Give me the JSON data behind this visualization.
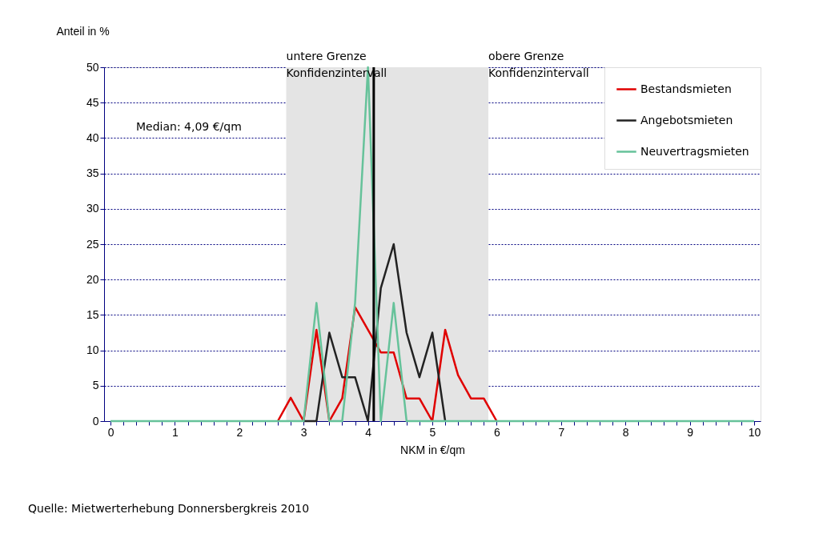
{
  "chart_data": {
    "type": "line",
    "xlabel": "NKM in €/qm",
    "ylabel": "Anteil in %",
    "x": [
      0,
      0.2,
      0.4,
      0.6,
      0.8,
      1,
      1.2,
      1.4,
      1.6,
      1.8,
      2,
      2.2,
      2.4,
      2.6,
      2.8,
      3,
      3.2,
      3.4,
      3.6,
      3.8,
      4,
      4.2,
      4.4,
      4.6,
      4.8,
      5,
      5.2,
      5.4,
      5.6,
      5.8,
      6,
      6.2,
      6.4,
      6.6,
      6.8,
      7,
      7.2,
      7.4,
      7.6,
      7.8,
      8,
      8.2,
      8.4,
      8.6,
      8.8,
      9,
      9.2,
      9.4,
      9.6,
      9.8,
      10
    ],
    "series": [
      {
        "name": "Bestandsmieten",
        "color": "#e00000",
        "values": [
          null,
          null,
          null,
          null,
          null,
          null,
          null,
          null,
          null,
          null,
          null,
          null,
          null,
          0,
          3.3,
          0,
          12.9,
          0,
          3.2,
          16.1,
          12.9,
          9.7,
          9.7,
          3.2,
          3.2,
          0,
          12.9,
          6.5,
          3.2,
          3.2,
          0,
          null,
          null,
          null,
          null,
          null,
          null,
          null,
          null,
          null,
          null,
          null,
          null,
          null,
          null,
          null,
          null,
          null,
          null,
          null,
          null
        ]
      },
      {
        "name": "Angebotsmieten",
        "color": "#222222",
        "values": [
          null,
          null,
          null,
          null,
          null,
          null,
          null,
          null,
          null,
          null,
          null,
          null,
          null,
          null,
          null,
          0,
          0,
          12.5,
          6.2,
          6.2,
          0,
          18.8,
          25,
          12.5,
          6.2,
          12.5,
          0,
          null,
          null,
          null,
          null,
          null,
          null,
          null,
          null,
          null,
          null,
          null,
          null,
          null,
          null,
          null,
          null,
          null,
          null,
          null,
          null,
          null,
          null,
          null,
          null
        ]
      },
      {
        "name": "Neuvertragsmieten",
        "color": "#66c29a",
        "values": [
          0,
          0,
          0,
          0,
          0,
          0,
          0,
          0,
          0,
          0,
          0,
          0,
          0,
          0,
          0,
          0,
          16.7,
          0,
          0,
          16.7,
          50,
          0,
          16.7,
          0,
          0,
          0,
          0,
          0,
          0,
          0,
          0,
          0,
          0,
          0,
          0,
          0,
          0,
          0,
          0,
          0,
          0,
          0,
          0,
          0,
          0,
          0,
          0,
          0,
          0,
          0,
          0
        ]
      }
    ],
    "xlim": [
      -0.1,
      10.1
    ],
    "ylim": [
      0,
      50
    ],
    "xticks": [
      0,
      {
        "value": 0.2,
        "label": null
      },
      {
        "value": 0.4,
        "label": null
      },
      {
        "value": 0.6,
        "label": null
      },
      {
        "value": 0.8,
        "label": null
      },
      1,
      {
        "value": 1.2,
        "label": null
      },
      {
        "value": 1.4,
        "label": null
      },
      {
        "value": 1.6,
        "label": null
      },
      {
        "value": 1.8,
        "label": null
      },
      2,
      {
        "value": 2.2,
        "label": null
      },
      {
        "value": 2.4,
        "label": null
      },
      {
        "value": 2.6,
        "label": null
      },
      {
        "value": 2.8,
        "label": null
      },
      3,
      {
        "value": 3.2,
        "label": null
      },
      {
        "value": 3.4,
        "label": null
      },
      {
        "value": 3.6,
        "label": null
      },
      {
        "value": 3.8,
        "label": null
      },
      4,
      {
        "value": 4.2,
        "label": null
      },
      {
        "value": 4.4,
        "label": null
      },
      {
        "value": 4.6,
        "label": null
      },
      {
        "value": 4.8,
        "label": null
      },
      5,
      {
        "value": 5.2,
        "label": null
      },
      {
        "value": 5.4,
        "label": null
      },
      {
        "value": 5.6,
        "label": null
      },
      {
        "value": 5.8,
        "label": null
      },
      6,
      {
        "value": 6.2,
        "label": null
      },
      {
        "value": 6.4,
        "label": null
      },
      {
        "value": 6.6,
        "label": null
      },
      {
        "value": 6.8,
        "label": null
      },
      7,
      {
        "value": 7.2,
        "label": null
      },
      {
        "value": 7.4,
        "label": null
      },
      {
        "value": 7.6,
        "label": null
      },
      {
        "value": 7.8,
        "label": null
      },
      8,
      {
        "value": 8.2,
        "label": null
      },
      {
        "value": 8.4,
        "label": null
      },
      {
        "value": 8.6,
        "label": null
      },
      {
        "value": 8.8,
        "label": null
      },
      9,
      {
        "value": 9.2,
        "label": null
      },
      {
        "value": 9.4,
        "label": null
      },
      {
        "value": 9.6,
        "label": null
      },
      {
        "value": 9.8,
        "label": null
      },
      10
    ],
    "yticks": [
      0,
      5,
      10,
      15,
      20,
      25,
      30,
      35,
      40,
      45,
      50
    ],
    "grid": "y",
    "legend": "top right",
    "bands": [
      {
        "axis": "x",
        "from": 2.73,
        "to": 5.87,
        "color": "#e4e4e4"
      }
    ],
    "ref_lines": [
      {
        "axis": "x",
        "value": 4.09,
        "color": "#000000"
      }
    ],
    "annotations": [
      "Median: 4,09 €/qm",
      "untere Grenze\nKonfidenzintervall",
      "obere Grenze\nKonfidenzintervall",
      "Quelle: Mietwerterhebung Donnersbergkreis 2010"
    ]
  }
}
